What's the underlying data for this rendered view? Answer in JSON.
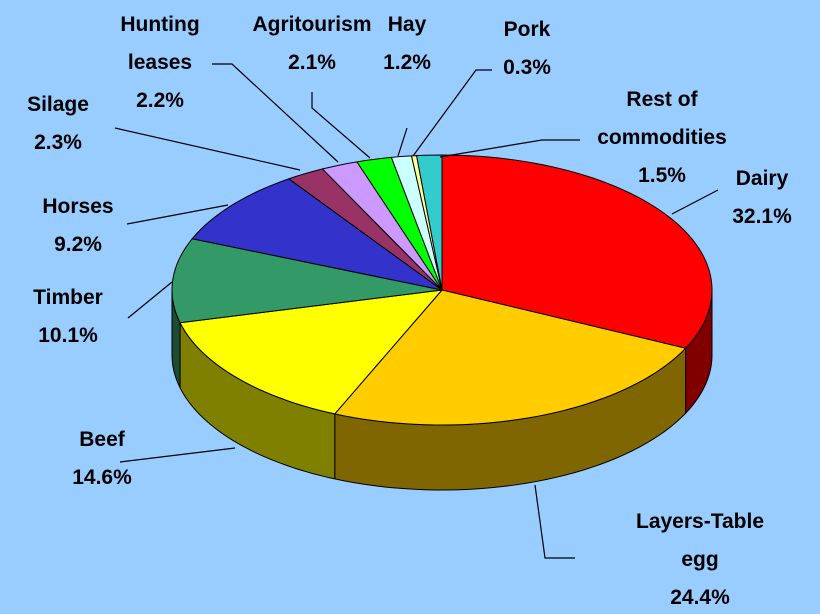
{
  "chart_data": {
    "type": "pie3d",
    "categories": [
      "Dairy",
      "Layers-Table egg",
      "Beef",
      "Timber",
      "Horses",
      "Silage",
      "Hunting leases",
      "Agritourism",
      "Hay",
      "Pork",
      "Rest of commodities"
    ],
    "values": [
      32.1,
      24.4,
      14.6,
      10.1,
      9.2,
      2.3,
      2.2,
      2.1,
      1.2,
      0.3,
      1.5
    ],
    "value_labels": [
      "32.1%",
      "24.4%",
      "14.6%",
      "10.1%",
      "9.2%",
      "2.3%",
      "2.2%",
      "2.1%",
      "1.2%",
      "0.3%",
      "1.5%"
    ],
    "colors": [
      "#ff0000",
      "#ffcc00",
      "#ffff00",
      "#339966",
      "#3333cc",
      "#993366",
      "#cc99ff",
      "#00ff00",
      "#ccffff",
      "#ffff99",
      "#33cccc"
    ]
  }
}
